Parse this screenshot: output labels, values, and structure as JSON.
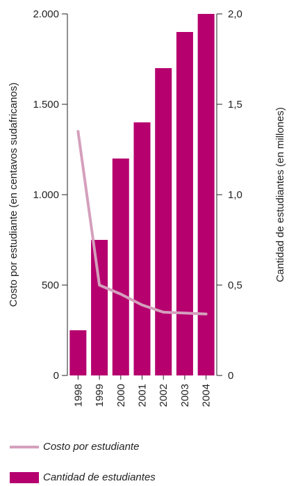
{
  "chart_data": {
    "type": "bar",
    "categories": [
      "1998",
      "1999",
      "2000",
      "2001",
      "2002",
      "2003",
      "2004"
    ],
    "series": [
      {
        "name": "Cantidad de estudiantes",
        "type": "bar",
        "axis": "right",
        "values": [
          0.25,
          0.75,
          1.2,
          1.4,
          1.7,
          1.9,
          2.0
        ]
      },
      {
        "name": "Costo por estudiante",
        "type": "line",
        "axis": "left",
        "values": [
          1350,
          500,
          450,
          390,
          350,
          345,
          340
        ]
      }
    ],
    "y_left": {
      "label": "Costo por estudiante (en centavos sudafricanos)",
      "ylim": [
        0,
        2000
      ],
      "ticks": [
        0,
        500,
        1000,
        1500,
        2000
      ],
      "tick_labels": [
        "0",
        "500",
        "1.000",
        "1.500",
        "2.000"
      ]
    },
    "y_right": {
      "label": "Cantidad de estudiantes (en millones)",
      "ylim": [
        0,
        2.0
      ],
      "ticks": [
        0,
        0.5,
        1.0,
        1.5,
        2.0
      ],
      "tick_labels": [
        "0",
        "0,5",
        "1,0",
        "1,5",
        "2,0"
      ]
    },
    "colors": {
      "bar": "#b5006e",
      "line": "#d4a0bc",
      "axis": "#222222"
    },
    "grid": false,
    "legend_position": "bottom-left"
  }
}
